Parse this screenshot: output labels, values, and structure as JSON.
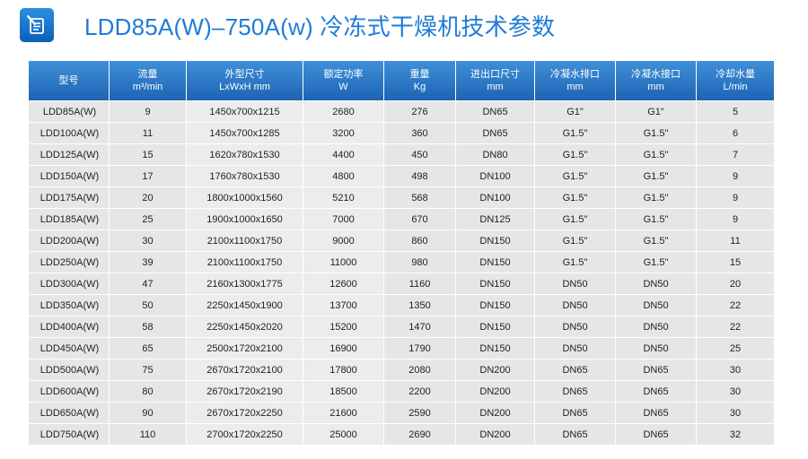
{
  "title": "LDD85A(W)–750A(w) 冷冻式干燥机技术参数",
  "icon": "document-pen-icon",
  "colors": {
    "title": "#1f7cd6",
    "header_bg": "#1d64b4",
    "row_bg": "#e6e6e6"
  },
  "table": {
    "headers": [
      {
        "line1": "型号",
        "line2": ""
      },
      {
        "line1": "流量",
        "line2": "m³/min"
      },
      {
        "line1": "外型尺寸",
        "line2": "LxWxH mm"
      },
      {
        "line1": "额定功率",
        "line2": "W"
      },
      {
        "line1": "重量",
        "line2": "Kg"
      },
      {
        "line1": "进出口尺寸",
        "line2": "mm"
      },
      {
        "line1": "冷凝水排口",
        "line2": "mm"
      },
      {
        "line1": "冷凝水接口",
        "line2": "mm"
      },
      {
        "line1": "冷却水量",
        "line2": "L/min"
      }
    ],
    "rows": [
      [
        "LDD85A(W)",
        "9",
        "1450x700x1215",
        "2680",
        "276",
        "DN65",
        "G1\"",
        "G1\"",
        "5"
      ],
      [
        "LDD100A(W)",
        "11",
        "1450x700x1285",
        "3200",
        "360",
        "DN65",
        "G1.5\"",
        "G1.5\"",
        "6"
      ],
      [
        "LDD125A(W)",
        "15",
        "1620x780x1530",
        "4400",
        "450",
        "DN80",
        "G1.5\"",
        "G1.5\"",
        "7"
      ],
      [
        "LDD150A(W)",
        "17",
        "1760x780x1530",
        "4800",
        "498",
        "DN100",
        "G1.5\"",
        "G1.5\"",
        "9"
      ],
      [
        "LDD175A(W)",
        "20",
        "1800x1000x1560",
        "5210",
        "568",
        "DN100",
        "G1.5\"",
        "G1.5\"",
        "9"
      ],
      [
        "LDD185A(W)",
        "25",
        "1900x1000x1650",
        "7000",
        "670",
        "DN125",
        "G1.5\"",
        "G1.5\"",
        "9"
      ],
      [
        "LDD200A(W)",
        "30",
        "2100x1100x1750",
        "9000",
        "860",
        "DN150",
        "G1.5\"",
        "G1.5\"",
        "11"
      ],
      [
        "LDD250A(W)",
        "39",
        "2100x1100x1750",
        "11000",
        "980",
        "DN150",
        "G1.5\"",
        "G1.5\"",
        "15"
      ],
      [
        "LDD300A(W)",
        "47",
        "2160x1300x1775",
        "12600",
        "1160",
        "DN150",
        "DN50",
        "DN50",
        "20"
      ],
      [
        "LDD350A(W)",
        "50",
        "2250x1450x1900",
        "13700",
        "1350",
        "DN150",
        "DN50",
        "DN50",
        "22"
      ],
      [
        "LDD400A(W)",
        "58",
        "2250x1450x2020",
        "15200",
        "1470",
        "DN150",
        "DN50",
        "DN50",
        "22"
      ],
      [
        "LDD450A(W)",
        "65",
        "2500x1720x2100",
        "16900",
        "1790",
        "DN150",
        "DN50",
        "DN50",
        "25"
      ],
      [
        "LDD500A(W)",
        "75",
        "2670x1720x2100",
        "17800",
        "2080",
        "DN200",
        "DN65",
        "DN65",
        "30"
      ],
      [
        "LDD600A(W)",
        "80",
        "2670x1720x2190",
        "18500",
        "2200",
        "DN200",
        "DN65",
        "DN65",
        "30"
      ],
      [
        "LDD650A(W)",
        "90",
        "2670x1720x2250",
        "21600",
        "2590",
        "DN200",
        "DN65",
        "DN65",
        "30"
      ],
      [
        "LDD750A(W)",
        "110",
        "2700x1720x2250",
        "25000",
        "2690",
        "DN200",
        "DN65",
        "DN65",
        "32"
      ]
    ]
  }
}
